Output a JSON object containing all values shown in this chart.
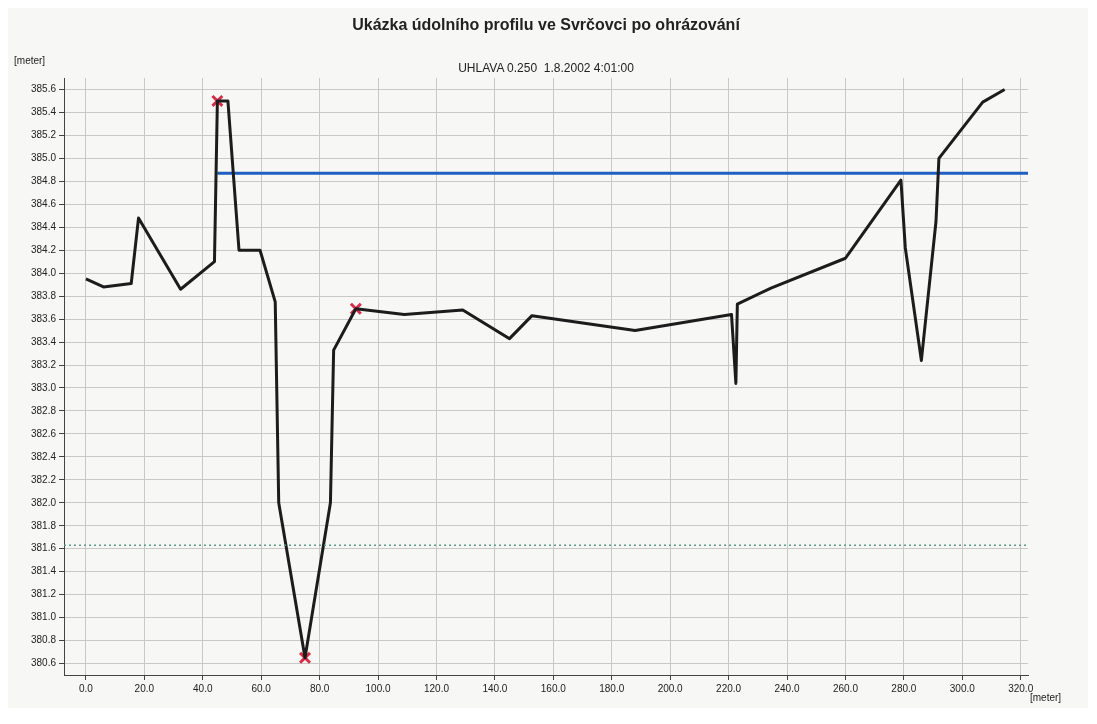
{
  "chart_data": {
    "type": "line",
    "title": "Ukázka údolního profilu ve Svrčovci po ohrázování",
    "subtitle": "UHLAVA 0.250  1.8.2002 4:01:00",
    "xlabel": "[meter]",
    "ylabel": "[meter]",
    "xlim": [
      -7.5,
      322.5
    ],
    "ylim": [
      380.5,
      385.7
    ],
    "xticks": [
      {
        "value": 0,
        "label": "0.0"
      },
      {
        "value": 20,
        "label": "20.0"
      },
      {
        "value": 40,
        "label": "40.0"
      },
      {
        "value": 60,
        "label": "60.0"
      },
      {
        "value": 80,
        "label": "80.0"
      },
      {
        "value": 100,
        "label": "100.0"
      },
      {
        "value": 120,
        "label": "120.0"
      },
      {
        "value": 140,
        "label": "140.0"
      },
      {
        "value": 160,
        "label": "160.0"
      },
      {
        "value": 180,
        "label": "180.0"
      },
      {
        "value": 200,
        "label": "200.0"
      },
      {
        "value": 220,
        "label": "220.0"
      },
      {
        "value": 240,
        "label": "240.0"
      },
      {
        "value": 260,
        "label": "260.0"
      },
      {
        "value": 280,
        "label": "280.0"
      },
      {
        "value": 300,
        "label": "300.0"
      },
      {
        "value": 320,
        "label": "320.0"
      }
    ],
    "yticks": [
      {
        "value": 380.6,
        "label": "380.6"
      },
      {
        "value": 380.8,
        "label": "380.8"
      },
      {
        "value": 381,
        "label": "381.0"
      },
      {
        "value": 381.2,
        "label": "381.2"
      },
      {
        "value": 381.4,
        "label": "381.4"
      },
      {
        "value": 381.6,
        "label": "381.6"
      },
      {
        "value": 381.8,
        "label": "381.8"
      },
      {
        "value": 382,
        "label": "382.0"
      },
      {
        "value": 382.2,
        "label": "382.2"
      },
      {
        "value": 382.4,
        "label": "382.4"
      },
      {
        "value": 382.6,
        "label": "382.6"
      },
      {
        "value": 382.8,
        "label": "382.8"
      },
      {
        "value": 383,
        "label": "383.0"
      },
      {
        "value": 383.2,
        "label": "383.2"
      },
      {
        "value": 383.4,
        "label": "383.4"
      },
      {
        "value": 383.6,
        "label": "383.6"
      },
      {
        "value": 383.8,
        "label": "383.8"
      },
      {
        "value": 384,
        "label": "384.0"
      },
      {
        "value": 384.2,
        "label": "384.2"
      },
      {
        "value": 384.4,
        "label": "384.4"
      },
      {
        "value": 384.6,
        "label": "384.6"
      },
      {
        "value": 384.8,
        "label": "384.8"
      },
      {
        "value": 385,
        "label": "385.0"
      },
      {
        "value": 385.2,
        "label": "385.2"
      },
      {
        "value": 385.4,
        "label": "385.4"
      },
      {
        "value": 385.6,
        "label": "385.6"
      }
    ],
    "grid": true,
    "legend": false,
    "line_style": "solid",
    "marker": "none",
    "series": [
      {
        "color": "#1c1c1c",
        "x": [
          0,
          6,
          15.5,
          18,
          32.4,
          44,
          45,
          48.6,
          52.4,
          59.6,
          64.8,
          66,
          75,
          83.7,
          84.8,
          92.4,
          109,
          129,
          145,
          152.7,
          188,
          221,
          222.5,
          223,
          234.5,
          260,
          279,
          280.5,
          286,
          291,
          292,
          307,
          314.5
        ],
        "values": [
          383.95,
          383.88,
          383.91,
          384.48,
          383.86,
          384.1,
          385.5,
          385.5,
          384.2,
          384.2,
          383.75,
          382.0,
          380.65,
          382.0,
          383.33,
          383.69,
          383.64,
          383.68,
          383.43,
          383.63,
          383.5,
          383.64,
          383.04,
          383.73,
          383.87,
          384.13,
          384.81,
          384.22,
          383.24,
          384.45,
          385.0,
          385.49,
          385.6
        ]
      },
      {
        "color": "#1f5fbf",
        "x": [
          45,
          322.5
        ],
        "values": [
          384.87,
          384.87
        ]
      },
      {
        "type": "scatter",
        "marker": "cross",
        "color": "#d62d4a",
        "x": [
          45,
          75,
          92.4
        ],
        "values": [
          385.5,
          380.65,
          383.69
        ]
      }
    ],
    "ref_lines": [
      {
        "axis": "y",
        "value": 381.63,
        "color": "#5a9a8a",
        "line_style": "dotted"
      }
    ]
  }
}
